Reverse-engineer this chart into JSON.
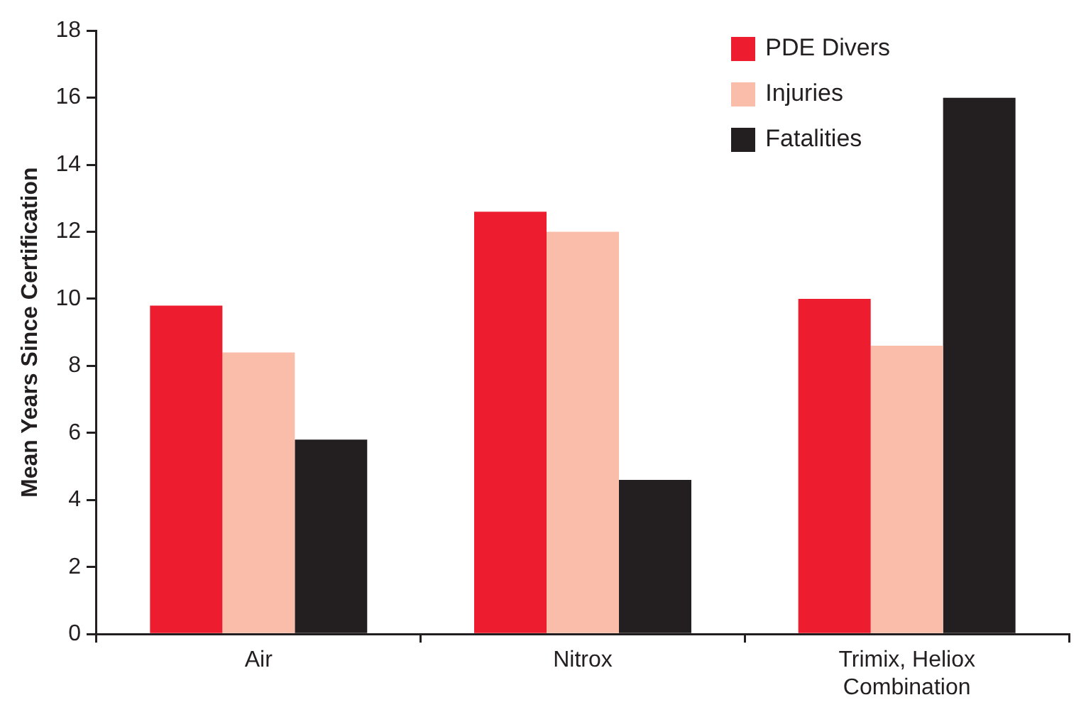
{
  "chart_data": {
    "type": "bar",
    "ylabel": "Mean Years Since Certification",
    "categories": [
      "Air",
      "Nitrox",
      "Trimix, Heliox Combination"
    ],
    "series": [
      {
        "name": "PDE Divers",
        "color": "#ed1c2e",
        "values": [
          9.8,
          12.6,
          10.0
        ]
      },
      {
        "name": "Injuries",
        "color": "#f9bda9",
        "values": [
          8.4,
          12.0,
          8.6
        ]
      },
      {
        "name": "Fatalities",
        "color": "#231f20",
        "values": [
          5.8,
          4.6,
          16.0
        ]
      }
    ],
    "ylim": [
      0,
      18
    ],
    "yticks": [
      0,
      2,
      4,
      6,
      8,
      10,
      12,
      14,
      16,
      18
    ],
    "grid": false,
    "legend": "top right"
  }
}
